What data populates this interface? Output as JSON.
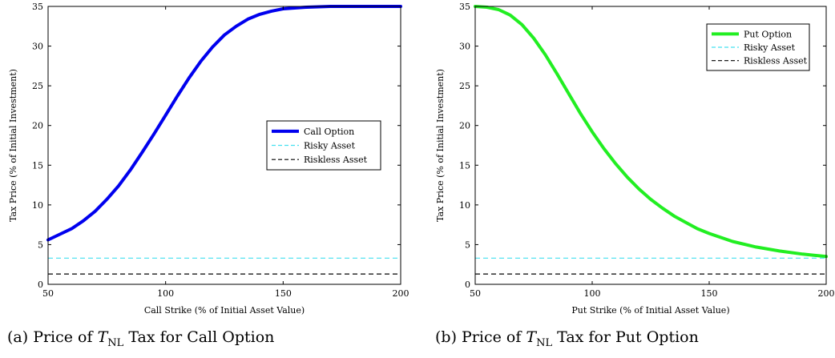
{
  "chart_data": [
    {
      "type": "line",
      "caption": {
        "prefix": "(a) Price of ",
        "math_main": "T",
        "math_sub": "NL",
        "suffix": " Tax for Call Option"
      },
      "xlabel": "Call Strike (% of Initial Asset Value)",
      "ylabel": "Tax Price (% of Initial Investment)",
      "xlim": [
        50,
        200
      ],
      "ylim": [
        0,
        35
      ],
      "xticks": [
        50,
        100,
        150,
        200
      ],
      "yticks": [
        0,
        5,
        10,
        15,
        20,
        25,
        30,
        35
      ],
      "grid": false,
      "legend": {
        "placement": "center-right",
        "entries": [
          "Call Option",
          "Risky Asset",
          "Riskless Asset"
        ]
      },
      "series": [
        {
          "name": "Call Option",
          "color": "#0000ee",
          "style": "solid",
          "width": 4,
          "x": [
            50,
            55,
            60,
            65,
            70,
            75,
            80,
            85,
            90,
            95,
            100,
            105,
            110,
            115,
            120,
            125,
            130,
            135,
            140,
            145,
            150,
            160,
            170,
            180,
            190,
            200
          ],
          "y": [
            5.6,
            6.3,
            7.0,
            8.0,
            9.2,
            10.7,
            12.4,
            14.4,
            16.6,
            18.9,
            21.3,
            23.7,
            26.0,
            28.1,
            29.9,
            31.4,
            32.5,
            33.4,
            34.0,
            34.4,
            34.7,
            34.9,
            35.0,
            35.0,
            35.0,
            35.0
          ]
        },
        {
          "name": "Risky Asset",
          "color": "#44e0f0",
          "style": "dashed",
          "width": 1.2,
          "x": [
            50,
            200
          ],
          "y": [
            3.3,
            3.3
          ]
        },
        {
          "name": "Riskless Asset",
          "color": "#000000",
          "style": "dashed",
          "width": 1.2,
          "x": [
            50,
            200
          ],
          "y": [
            1.3,
            1.3
          ]
        }
      ]
    },
    {
      "type": "line",
      "caption": {
        "prefix": "(b) Price of ",
        "math_main": "T",
        "math_sub": "NL",
        "suffix": " Tax for Put Option"
      },
      "xlabel": "Put Strike (% of Initial Asset Value)",
      "ylabel": "Tax Price (% of Initial Investment)",
      "xlim": [
        50,
        200
      ],
      "ylim": [
        0,
        35
      ],
      "xticks": [
        50,
        100,
        150,
        200
      ],
      "yticks": [
        0,
        5,
        10,
        15,
        20,
        25,
        30,
        35
      ],
      "grid": false,
      "legend": {
        "placement": "top-right",
        "entries": [
          "Put Option",
          "Risky Asset",
          "Riskless Asset"
        ]
      },
      "series": [
        {
          "name": "Put Option",
          "color": "#22ee22",
          "style": "solid",
          "width": 4,
          "x": [
            50,
            55,
            60,
            65,
            70,
            75,
            80,
            85,
            90,
            95,
            100,
            105,
            110,
            115,
            120,
            125,
            130,
            135,
            140,
            145,
            150,
            160,
            170,
            180,
            190,
            200
          ],
          "y": [
            35.0,
            34.9,
            34.6,
            33.9,
            32.7,
            31.0,
            28.9,
            26.5,
            24.0,
            21.5,
            19.2,
            17.1,
            15.2,
            13.5,
            12.0,
            10.7,
            9.6,
            8.6,
            7.8,
            7.0,
            6.4,
            5.4,
            4.7,
            4.2,
            3.8,
            3.5
          ]
        },
        {
          "name": "Risky Asset",
          "color": "#44e0f0",
          "style": "dashed",
          "width": 1.2,
          "x": [
            50,
            200
          ],
          "y": [
            3.3,
            3.3
          ]
        },
        {
          "name": "Riskless Asset",
          "color": "#000000",
          "style": "dashed",
          "width": 1.2,
          "x": [
            50,
            200
          ],
          "y": [
            1.3,
            1.3
          ]
        }
      ]
    }
  ]
}
